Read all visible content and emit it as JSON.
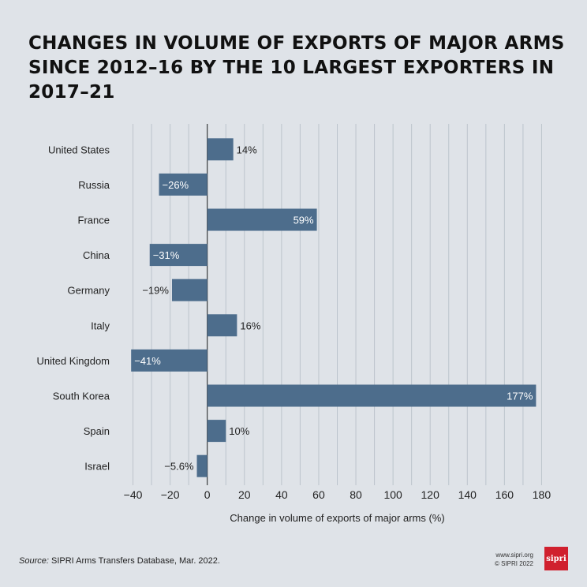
{
  "title": "CHANGES IN VOLUME OF EXPORTS OF MAJOR ARMS SINCE 2012–16 BY THE 10 LARGEST EXPORTERS IN 2017–21",
  "source": {
    "prefix": "Source:",
    "text": " SIPRI Arms Transfers Database, Mar. 2022."
  },
  "credits": {
    "url": "www.sipri.org",
    "copyright": "© SIPRI 2022"
  },
  "logo_text": "sipri",
  "colors": {
    "bar": "#4d6d8c",
    "grid": "#bcc4cc",
    "background": "#dfe3e8",
    "logo": "#d0202e"
  },
  "chart_data": {
    "type": "bar",
    "orientation": "horizontal",
    "categories": [
      "United States",
      "Russia",
      "France",
      "China",
      "Germany",
      "Italy",
      "United Kingdom",
      "South Korea",
      "Spain",
      "Israel"
    ],
    "values": [
      14,
      -26,
      59,
      -31,
      -19,
      16,
      -41,
      177,
      10,
      -5.6
    ],
    "value_labels": [
      "14%",
      "−26%",
      "59%",
      "−31%",
      "−19%",
      "16%",
      "−41%",
      "177%",
      "10%",
      "−5.6%"
    ],
    "xlabel": "Change in volume of exports of major arms (%)",
    "xlim": [
      -50,
      190
    ],
    "xticks": [
      -40,
      -20,
      0,
      20,
      40,
      60,
      80,
      100,
      120,
      140,
      160,
      180
    ],
    "xtick_labels": [
      "−40",
      "−20",
      "0",
      "20",
      "40",
      "60",
      "80",
      "100",
      "120",
      "140",
      "160",
      "180"
    ],
    "grid": true,
    "legend": "none"
  }
}
